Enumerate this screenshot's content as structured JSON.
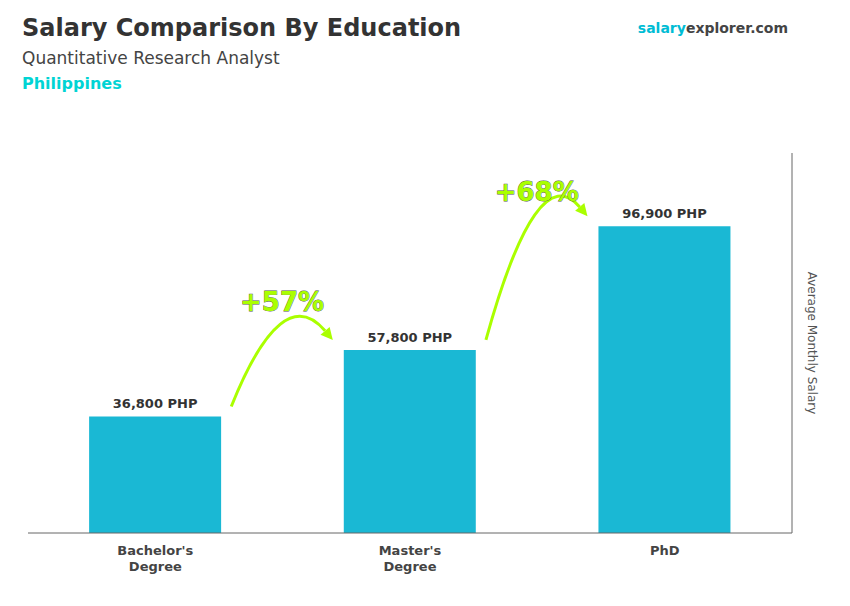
{
  "chart_data": {
    "type": "bar",
    "title": "Salary Comparison By Education",
    "subtitle": "Quantitative Research Analyst",
    "ylabel": "Average Monthly Salary",
    "categories": [
      "Bachelor's\nDegree",
      "Master's\nDegree",
      "PhD"
    ],
    "values": [
      36800,
      57800,
      96900
    ],
    "value_labels": [
      "36,800 PHP",
      "57,800 PHP",
      "96,900 PHP"
    ],
    "data_labels": true,
    "color": "#1ab8d4",
    "ylim": [
      0,
      120000
    ],
    "grid": false,
    "tick_labels": "x",
    "annotations": [
      {
        "text": "Philippines",
        "color": "#00d4d4"
      }
    ],
    "watermark": [
      {
        "text": "salary",
        "color": "#00bcd4"
      },
      {
        "text": "explorer"
      },
      {
        "text": ".com"
      }
    ],
    "arrows": [
      {
        "label": "+57%",
        "color": "#aaff00"
      },
      {
        "label": "+68%",
        "color": "#aaff00"
      }
    ]
  }
}
